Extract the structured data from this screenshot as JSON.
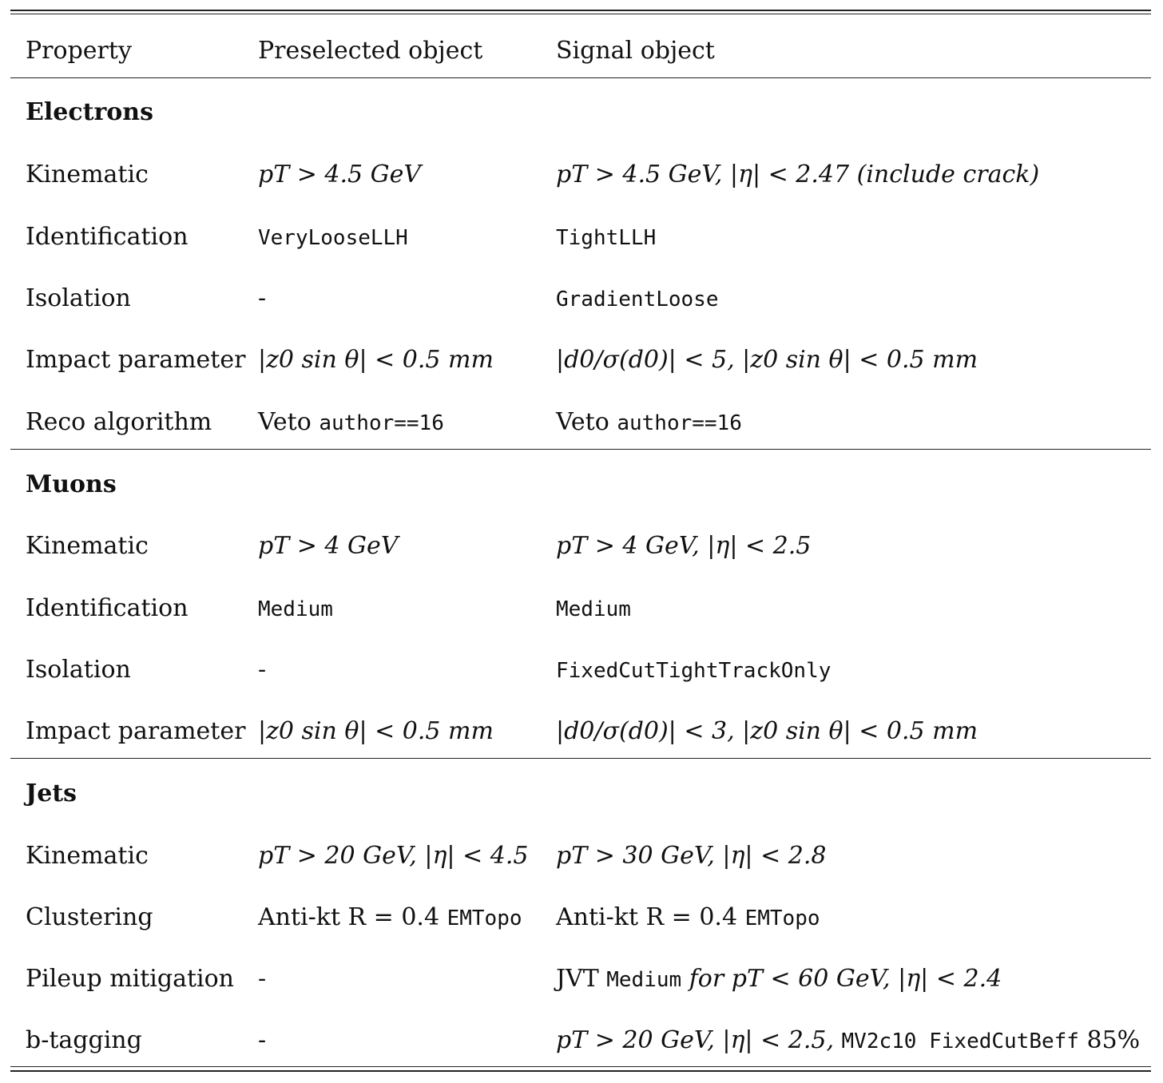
{
  "header": {
    "property": "Property",
    "preselected": "Preselected object",
    "signal": "Signal object"
  },
  "sections": [
    {
      "title": "Electrons",
      "rows": [
        {
          "property": "Kinematic",
          "preselected": [
            {
              "t": "pT > 4.5 GeV",
              "s": "math"
            }
          ],
          "signal": [
            {
              "t": "pT > 4.5 GeV, |η| < 2.47 (include crack)",
              "s": "math"
            }
          ]
        },
        {
          "property": "Identification",
          "preselected": [
            {
              "t": "VeryLooseLLH",
              "s": "mono"
            }
          ],
          "signal": [
            {
              "t": "TightLLH",
              "s": "mono"
            }
          ]
        },
        {
          "property": "Isolation",
          "preselected": [
            {
              "t": "-",
              "s": ""
            }
          ],
          "signal": [
            {
              "t": "GradientLoose",
              "s": "mono"
            }
          ]
        },
        {
          "property": "Impact parameter",
          "preselected": [
            {
              "t": "|z0 sin θ| < 0.5 mm",
              "s": "math"
            }
          ],
          "signal": [
            {
              "t": "|d0/σ(d0)| < 5, |z0 sin θ| < 0.5 mm",
              "s": "math"
            }
          ]
        },
        {
          "property": "Reco algorithm",
          "preselected": [
            {
              "t": "Veto ",
              "s": ""
            },
            {
              "t": "author==16",
              "s": "mono"
            }
          ],
          "signal": [
            {
              "t": "Veto ",
              "s": ""
            },
            {
              "t": "author==16",
              "s": "mono"
            }
          ]
        }
      ]
    },
    {
      "title": "Muons",
      "rows": [
        {
          "property": "Kinematic",
          "preselected": [
            {
              "t": "pT > 4 GeV",
              "s": "math"
            }
          ],
          "signal": [
            {
              "t": "pT > 4 GeV, |η| < 2.5",
              "s": "math"
            }
          ]
        },
        {
          "property": "Identification",
          "preselected": [
            {
              "t": "Medium",
              "s": "mono"
            }
          ],
          "signal": [
            {
              "t": "Medium",
              "s": "mono"
            }
          ]
        },
        {
          "property": "Isolation",
          "preselected": [
            {
              "t": "-",
              "s": ""
            }
          ],
          "signal": [
            {
              "t": "FixedCutTightTrackOnly",
              "s": "mono"
            }
          ]
        },
        {
          "property": "Impact parameter",
          "preselected": [
            {
              "t": "|z0 sin θ| < 0.5 mm",
              "s": "math"
            }
          ],
          "signal": [
            {
              "t": "|d0/σ(d0)| < 3, |z0 sin θ| < 0.5 mm",
              "s": "math"
            }
          ]
        }
      ]
    },
    {
      "title": "Jets",
      "rows": [
        {
          "property": "Kinematic",
          "preselected": [
            {
              "t": "pT > 20 GeV, |η| < 4.5",
              "s": "math"
            }
          ],
          "signal": [
            {
              "t": "pT > 30 GeV, |η| < 2.8",
              "s": "math"
            }
          ]
        },
        {
          "property": "Clustering",
          "preselected": [
            {
              "t": "Anti-kt R = 0.4 ",
              "s": ""
            },
            {
              "t": "EMTopo",
              "s": "mono"
            }
          ],
          "signal": [
            {
              "t": "Anti-kt R = 0.4 ",
              "s": ""
            },
            {
              "t": "EMTopo",
              "s": "mono"
            }
          ]
        },
        {
          "property": "Pileup mitigation",
          "preselected": [
            {
              "t": "-",
              "s": ""
            }
          ],
          "signal": [
            {
              "t": "JVT ",
              "s": ""
            },
            {
              "t": "Medium",
              "s": "mono"
            },
            {
              "t": " for pT < 60 GeV, |η| < 2.4",
              "s": "math"
            }
          ]
        },
        {
          "property": "b-tagging",
          "preselected": [
            {
              "t": "-",
              "s": ""
            }
          ],
          "signal": [
            {
              "t": "pT > 20 GeV, |η| < 2.5, ",
              "s": "math"
            },
            {
              "t": "MV2c10 FixedCutBeff",
              "s": "mono"
            },
            {
              "t": " 85%",
              "s": ""
            }
          ]
        }
      ]
    }
  ]
}
